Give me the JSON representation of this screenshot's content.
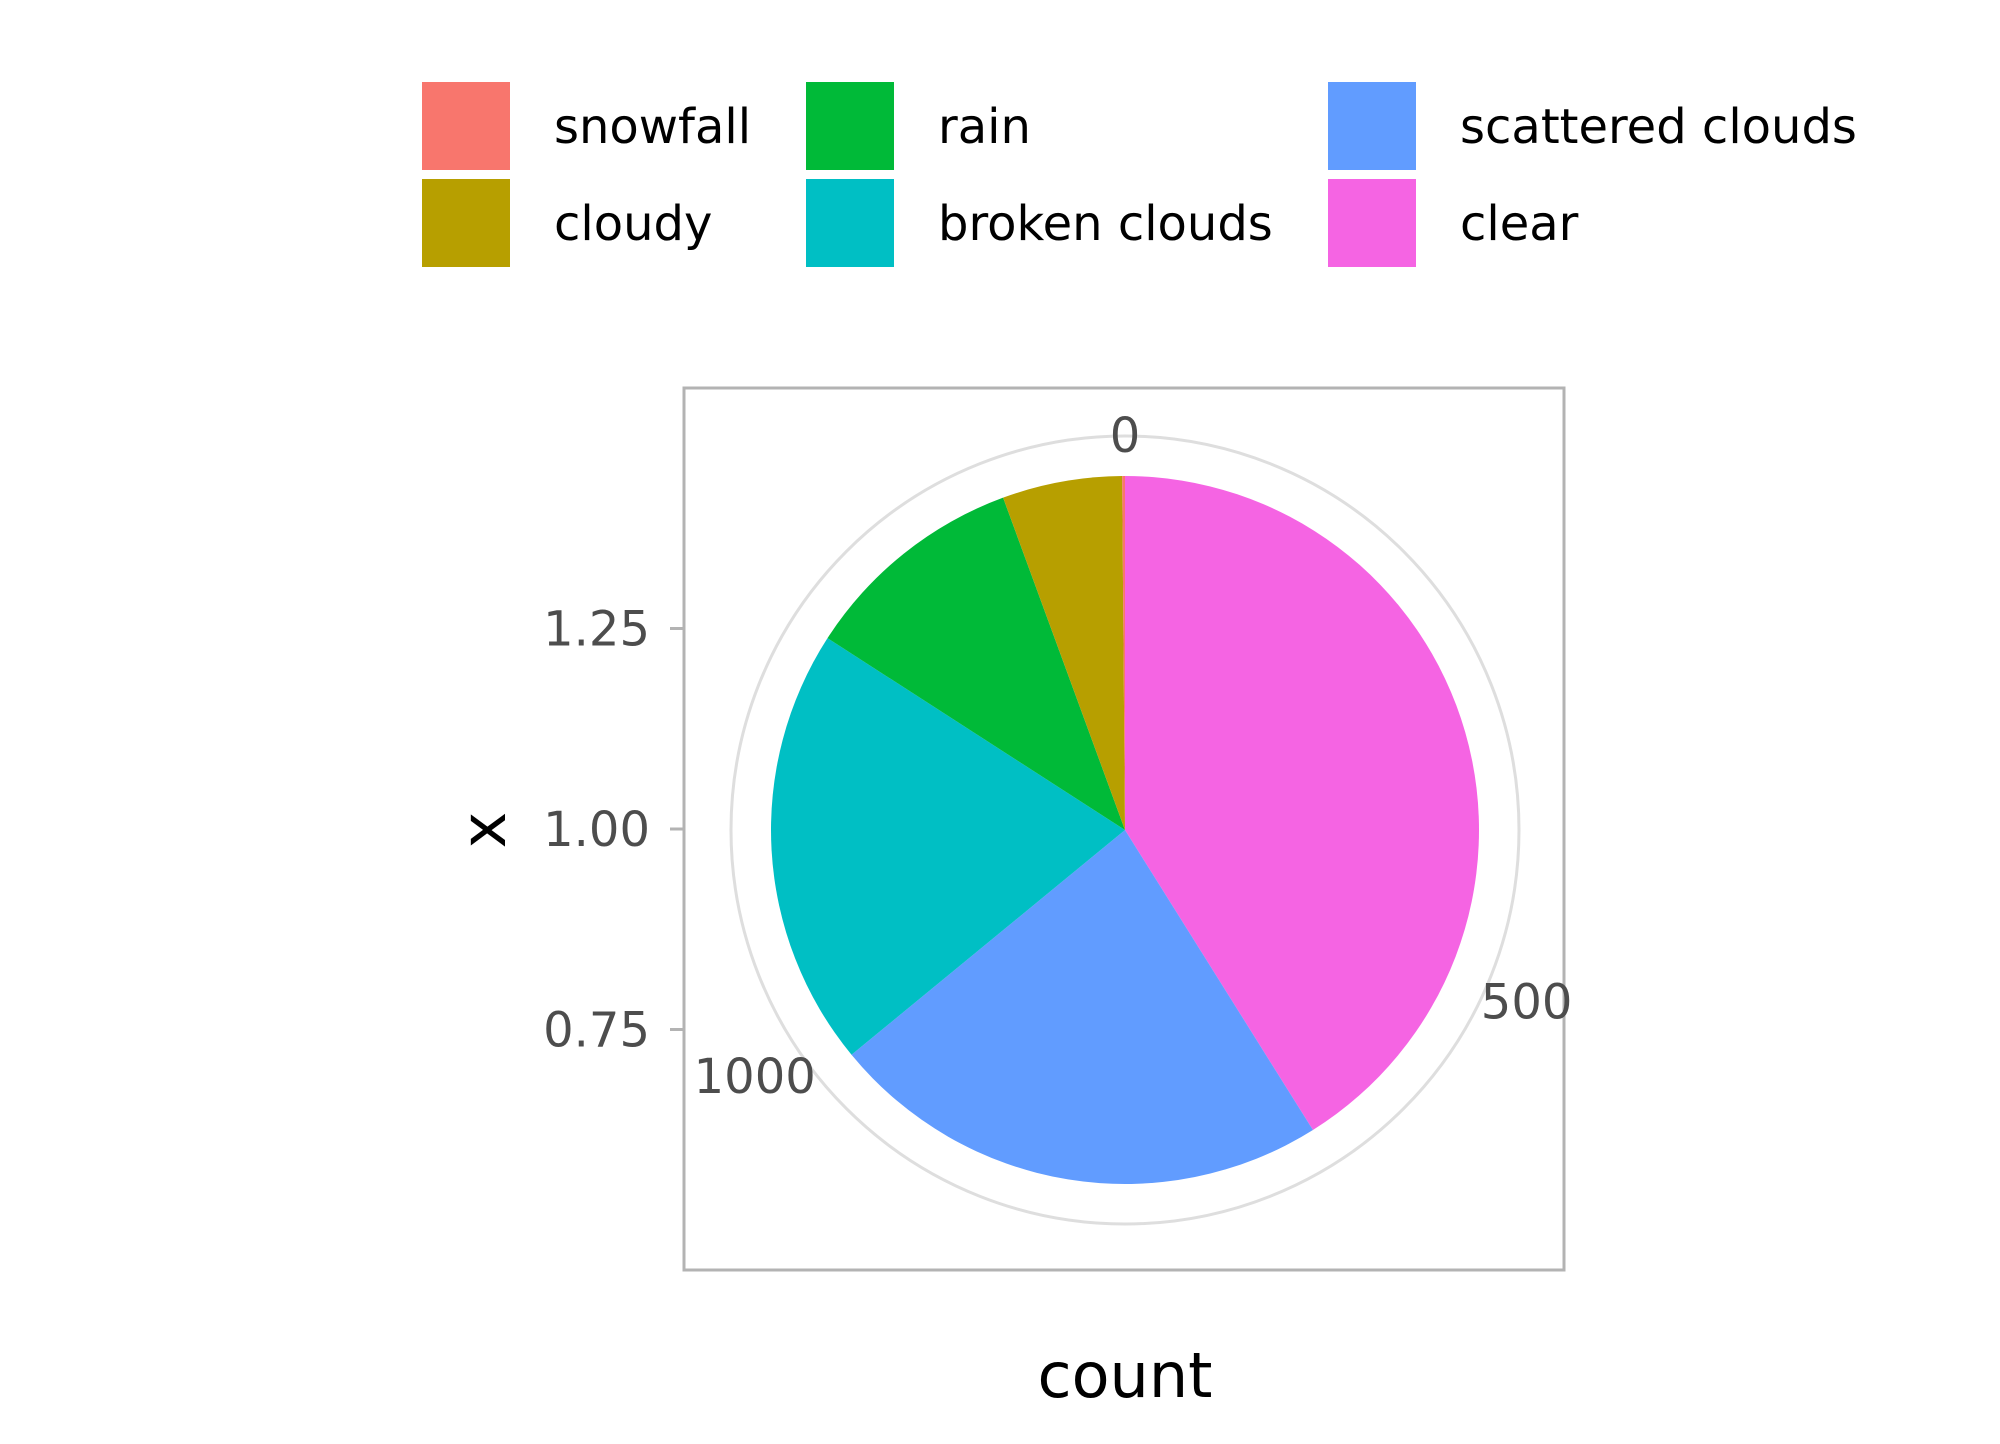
{
  "chart_data": {
    "type": "pie",
    "title": "",
    "xlabel": "count",
    "ylabel": "x",
    "legend_position": "top",
    "categories": [
      "snowfall",
      "cloudy",
      "rain",
      "broken clouds",
      "scattered clouds",
      "clear"
    ],
    "values": [
      2,
      85,
      160,
      312,
      357,
      639
    ],
    "colors": [
      "#F8766D",
      "#B79F00",
      "#00BA38",
      "#00BFC4",
      "#619CFF",
      "#F564E3"
    ],
    "angular_axis": {
      "ticks": [
        0,
        500,
        1000
      ],
      "tick_labels": [
        "0",
        "500",
        "1000"
      ],
      "range": [
        0,
        1555
      ]
    },
    "radial_axis": {
      "ticks": [
        0.75,
        1.0,
        1.25
      ],
      "tick_labels": [
        "0.75",
        "1.00",
        "1.25"
      ],
      "range": [
        0.45,
        1.55
      ]
    },
    "grid": true
  }
}
